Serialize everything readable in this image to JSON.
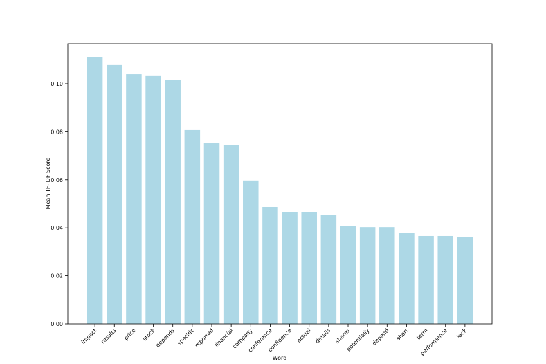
{
  "chart_data": {
    "type": "bar",
    "x_label": "Word",
    "y_label": "Mean TF-IDF Score",
    "categories": [
      "impact",
      "results",
      "price",
      "stock",
      "depends",
      "specific",
      "reported",
      "financial",
      "company",
      "conference",
      "confidence",
      "actual",
      "details",
      "shares",
      "potentially",
      "depend",
      "short",
      "term",
      "performance",
      "lack"
    ],
    "values": [
      0.111,
      0.1078,
      0.104,
      0.1032,
      0.1017,
      0.0807,
      0.0752,
      0.0744,
      0.0597,
      0.0487,
      0.0464,
      0.0464,
      0.0455,
      0.0409,
      0.0403,
      0.0403,
      0.038,
      0.0366,
      0.0366,
      0.0363
    ],
    "color": "#add8e6",
    "ylim": [
      0,
      0.1167
    ],
    "yticks": [
      {
        "value": 0,
        "label": "0.00"
      },
      {
        "value": 0.02,
        "label": "0.02"
      },
      {
        "value": 0.04,
        "label": "0.04"
      },
      {
        "value": 0.06,
        "label": "0.06"
      },
      {
        "value": 0.08,
        "label": "0.08"
      },
      {
        "value": 0.1,
        "label": "0.10"
      }
    ],
    "grid": false
  }
}
